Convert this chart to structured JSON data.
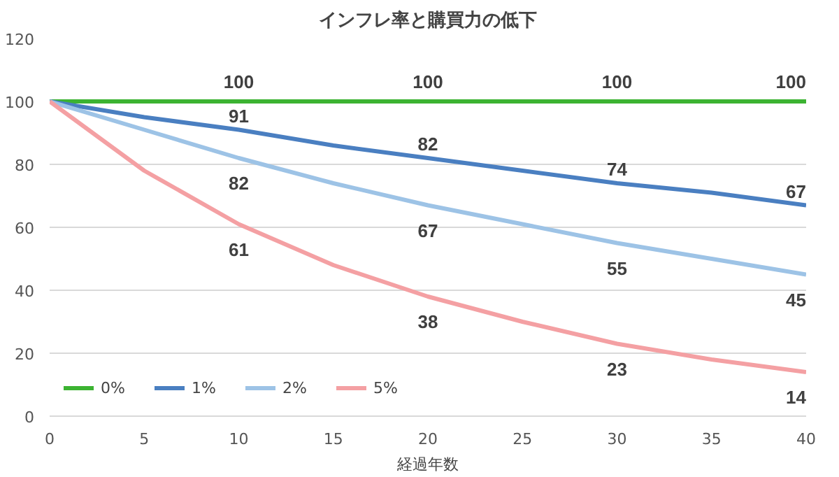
{
  "chart_data": {
    "type": "line",
    "title": "インフレ率と購買力の低下",
    "xlabel": "経過年数",
    "x": [
      0,
      5,
      10,
      15,
      20,
      25,
      30,
      35,
      40
    ],
    "series": [
      {
        "name": "0%",
        "color": "#3cb332",
        "values": [
          100,
          100,
          100,
          100,
          100,
          100,
          100,
          100,
          100
        ],
        "value_labels": [
          null,
          null,
          "100",
          null,
          "100",
          null,
          "100",
          null,
          "100"
        ]
      },
      {
        "name": "1%",
        "color": "#4a7fc1",
        "values": [
          100,
          95,
          91,
          86,
          82,
          78,
          74,
          71,
          67
        ],
        "value_labels": [
          null,
          null,
          "91",
          null,
          "82",
          null,
          "74",
          null,
          "67"
        ]
      },
      {
        "name": "2%",
        "color": "#9dc3e6",
        "values": [
          100,
          91,
          82,
          74,
          67,
          61,
          55,
          50,
          45
        ],
        "value_labels": [
          null,
          null,
          "82",
          null,
          "67",
          null,
          "55",
          null,
          "45"
        ]
      },
      {
        "name": "5%",
        "color": "#f4a0a3",
        "values": [
          100,
          78,
          61,
          48,
          38,
          30,
          23,
          18,
          14
        ],
        "value_labels": [
          null,
          null,
          "61",
          null,
          "38",
          null,
          "23",
          null,
          "14"
        ]
      }
    ],
    "xlim": [
      0,
      40
    ],
    "xticks": [
      0,
      5,
      10,
      15,
      20,
      25,
      30,
      35,
      40
    ],
    "ylim": [
      0,
      120
    ],
    "yticks": [
      0,
      20,
      40,
      60,
      80,
      100,
      120
    ],
    "grid": "y",
    "legend": "bottom left",
    "marker": "none",
    "line_style": "solid"
  }
}
